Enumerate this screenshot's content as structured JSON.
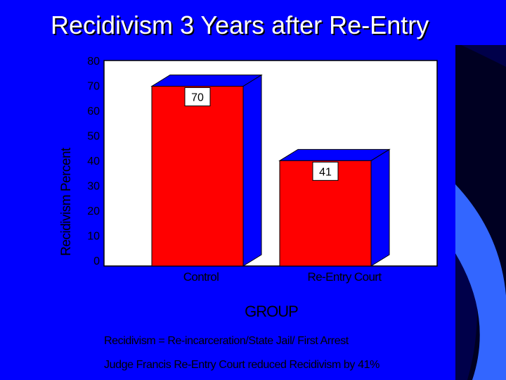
{
  "slide": {
    "title": "Recidivism 3 Years after Re-Entry",
    "notes": [
      "Recidivism = Re-incarceration/State Jail/ First Arrest",
      "Judge Francis Re-Entry Court reduced Recidivism by 41%"
    ],
    "colors": {
      "background": "#0000ff",
      "right_panel": "#000033",
      "accent_stripe": "#3366ff"
    }
  },
  "chart_data": {
    "type": "bar",
    "categories": [
      "Control",
      "Re-Entry Court"
    ],
    "values": [
      70,
      41
    ],
    "data_labels": [
      "70",
      "41"
    ],
    "xlabel": "GROUP",
    "ylabel": "Recidivism Percent",
    "ylim": [
      0,
      80
    ],
    "yticks": [
      0,
      10,
      20,
      30,
      40,
      50,
      60,
      70,
      80
    ],
    "grid": false,
    "legend": "none",
    "colors": {
      "bar_front": "#ff0000",
      "bar_side": "#0000ff",
      "bar_top": "#0000ff",
      "plot_background": "#ffffff"
    }
  }
}
